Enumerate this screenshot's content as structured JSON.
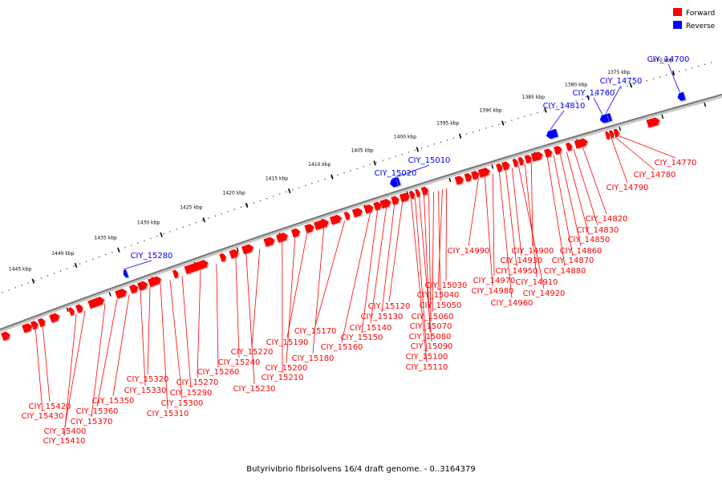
{
  "colors": {
    "forward": "#ff0000",
    "reverse": "#0000ff",
    "backbone": "#777777",
    "leader_forward": "#ff0000",
    "leader_reverse": "#0000ff"
  },
  "legend": [
    {
      "label": "Forward",
      "color": "#ff0000"
    },
    {
      "label": "Reverse",
      "color": "#0000ff"
    }
  ],
  "caption": "Butyrivibrio fibrisolvens 16/4 draft genome. - 0..3164379",
  "scale": {
    "unit": "kbp",
    "ticks": [
      {
        "kbp": 1370,
        "label": "1370 kbp"
      },
      {
        "kbp": 1375,
        "label": "1375 kbp"
      },
      {
        "kbp": 1380,
        "label": "1380 kbp"
      },
      {
        "kbp": 1385,
        "label": "1385 kbp"
      },
      {
        "kbp": 1390,
        "label": "1390 kbp"
      },
      {
        "kbp": 1395,
        "label": "1395 kbp"
      },
      {
        "kbp": 1400,
        "label": "1400 kbp"
      },
      {
        "kbp": 1405,
        "label": "1405 kbp"
      },
      {
        "kbp": 1410,
        "label": "1410 kbp"
      },
      {
        "kbp": 1415,
        "label": "1415 kbp"
      },
      {
        "kbp": 1420,
        "label": "1420 kbp"
      },
      {
        "kbp": 1425,
        "label": "1425 kbp"
      },
      {
        "kbp": 1430,
        "label": "1430 kbp"
      },
      {
        "kbp": 1435,
        "label": "1435 kbp"
      },
      {
        "kbp": 1440,
        "label": "1440 kbp"
      },
      {
        "kbp": 1445,
        "label": "1445 kbp"
      }
    ]
  },
  "reverse_genes": [
    {
      "name": "CIY_14700",
      "kbp": 1370.2
    },
    {
      "name": "CIY_14750",
      "kbp": 1378.6
    },
    {
      "name": "CIY_14760",
      "kbp": 1379.0
    },
    {
      "name": "CIY_14810",
      "kbp": 1385.5
    },
    {
      "name": "CIY_15010",
      "kbp": 1403.4
    },
    {
      "name": "CIY_15020",
      "kbp": 1403.7
    },
    {
      "name": "CIY_15280",
      "kbp": 1435.2
    }
  ],
  "forward_genes": [
    "CIY_14770",
    "CIY_14780",
    "CIY_14790",
    "CIY_14820",
    "CIY_14830",
    "CIY_14850",
    "CIY_14860",
    "CIY_14870",
    "CIY_14880",
    "CIY_14900",
    "CIY_14910",
    "CIY_14920",
    "CIY_14930",
    "CIY_14950",
    "CIY_14960",
    "CIY_14970",
    "CIY_14980",
    "CIY_14990",
    "CIY_15030",
    "CIY_15040",
    "CIY_15050",
    "CIY_15060",
    "CIY_15070",
    "CIY_15080",
    "CIY_15090",
    "CIY_15100",
    "CIY_15110",
    "CIY_15120",
    "CIY_15130",
    "CIY_15140",
    "CIY_15150",
    "CIY_15160",
    "CIY_15170",
    "CIY_15180",
    "CIY_15190",
    "CIY_15200",
    "CIY_15210",
    "CIY_15220",
    "CIY_15230",
    "CIY_15240",
    "CIY_15260",
    "CIY_15270",
    "CIY_15290",
    "CIY_15300",
    "CIY_15310",
    "CIY_15320",
    "CIY_15330",
    "CIY_15350",
    "CIY_15360",
    "CIY_15370",
    "CIY_15400",
    "CIY_15410",
    "CIY_15420",
    "CIY_15430"
  ]
}
